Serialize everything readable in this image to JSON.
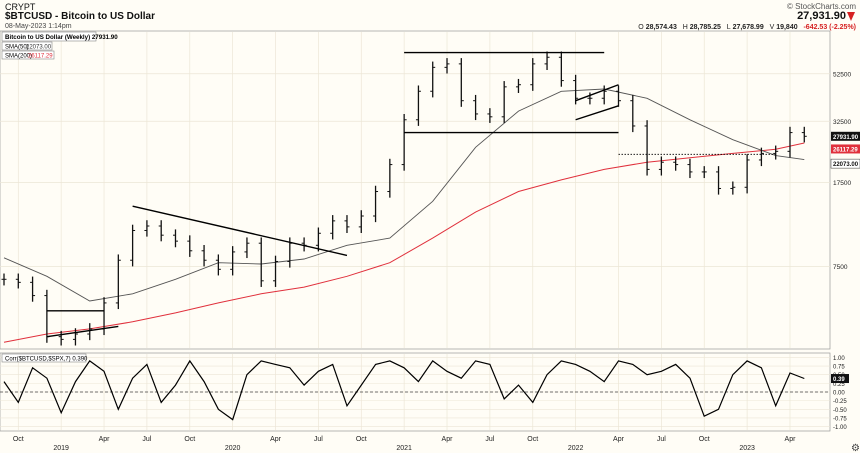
{
  "header": {
    "exchange": "CRYPT",
    "symbol_title": "$BTCUSD - Bitcoin to US Dollar",
    "date": "08-May-2023 1:14pm",
    "brand": "© StockCharts.com",
    "last_price": "27,931.90",
    "ohlc": {
      "open_label": "O",
      "open": "28,574.43",
      "high_label": "H",
      "high": "28,785.25",
      "low_label": "L",
      "low": "27,678.99",
      "volume_label": "V",
      "volume": "19,840",
      "change": "-642.53 (-2.25%)"
    }
  },
  "colors": {
    "background": "#fffdf6",
    "price_bars": "#111111",
    "sma50": "#555555",
    "sma200": "#e0303c",
    "trendline": "#000000",
    "last_price_tag": "#111111",
    "sma200_tag": "#e0303c",
    "sma50_tag": "#333333",
    "change_negative": "#d62020"
  },
  "chart_data": [
    {
      "type": "line",
      "title": "Bitcoin to US Dollar (Weekly) 27931.90",
      "scale": "log",
      "y_ticks": [
        52500,
        32500,
        17500,
        7500
      ],
      "ylim": [
        3300,
        80000
      ],
      "x_ticks": [
        "Oct",
        "2019",
        "Apr",
        "Jul",
        "Oct",
        "2020",
        "Apr",
        "Jul",
        "Oct",
        "2021",
        "Apr",
        "Jul",
        "Oct",
        "2022",
        "Apr",
        "Jul",
        "Oct",
        "2023",
        "Apr"
      ],
      "x_tick_dates": [
        "2018-10",
        "2019-01",
        "2019-04",
        "2019-07",
        "2019-10",
        "2020-01",
        "2020-04",
        "2020-07",
        "2020-10",
        "2021-01",
        "2021-04",
        "2021-07",
        "2021-10",
        "2022-01",
        "2022-04",
        "2022-07",
        "2022-10",
        "2023-01",
        "2023-04"
      ],
      "grid": true,
      "legend": "top-left",
      "legend_entries": [
        {
          "label": "SMA(50)",
          "value": "22073.00"
        },
        {
          "label": "SMA(200)",
          "value": "26117.29"
        }
      ],
      "axis_tags": [
        {
          "label": "27931.90",
          "value": 27931.9,
          "kind": "price"
        },
        {
          "label": "26117.29",
          "value": 26117.29,
          "kind": "sma200"
        },
        {
          "label": "22073.00",
          "value": 22073.0,
          "kind": "sma50"
        }
      ],
      "series": [
        {
          "name": "Bitcoin to US Dollar (Weekly)",
          "kind": "close",
          "x": [
            "2018-09",
            "2018-10",
            "2018-11",
            "2018-12",
            "2019-01",
            "2019-02",
            "2019-03",
            "2019-04",
            "2019-05",
            "2019-06",
            "2019-07",
            "2019-08",
            "2019-09",
            "2019-10",
            "2019-11",
            "2019-12",
            "2020-01",
            "2020-02",
            "2020-03",
            "2020-04",
            "2020-05",
            "2020-06",
            "2020-07",
            "2020-08",
            "2020-09",
            "2020-10",
            "2020-11",
            "2020-12",
            "2021-01",
            "2021-02",
            "2021-03",
            "2021-04",
            "2021-05",
            "2021-06",
            "2021-07",
            "2021-08",
            "2021-09",
            "2021-10",
            "2021-11",
            "2021-12",
            "2022-01",
            "2022-02",
            "2022-03",
            "2022-04",
            "2022-05",
            "2022-06",
            "2022-07",
            "2022-08",
            "2022-09",
            "2022-10",
            "2022-11",
            "2022-12",
            "2023-01",
            "2023-02",
            "2023-03",
            "2023-04",
            "2023-05"
          ],
          "values": [
            6600,
            6400,
            5600,
            3700,
            3600,
            3800,
            4000,
            5200,
            8000,
            10800,
            11300,
            10300,
            9700,
            8800,
            8000,
            7300,
            8700,
            9500,
            6500,
            7900,
            9500,
            9300,
            10500,
            11900,
            11200,
            12500,
            16000,
            21000,
            33000,
            44000,
            56000,
            58000,
            40000,
            35000,
            34000,
            46000,
            47000,
            58000,
            62000,
            49000,
            41000,
            41000,
            44000,
            40000,
            31000,
            20000,
            21500,
            21000,
            19500,
            19500,
            16500,
            16700,
            22000,
            23500,
            24000,
            29000,
            27931.9
          ]
        },
        {
          "name": "SMA(50)",
          "kind": "sma50",
          "x": [
            "2018-09",
            "2018-12",
            "2019-03",
            "2019-06",
            "2019-09",
            "2019-12",
            "2020-03",
            "2020-06",
            "2020-09",
            "2020-12",
            "2021-03",
            "2021-06",
            "2021-09",
            "2021-12",
            "2022-03",
            "2022-06",
            "2022-09",
            "2022-12",
            "2023-03",
            "2023-05"
          ],
          "values": [
            8200,
            6800,
            5300,
            5700,
            6600,
            7800,
            7700,
            8100,
            9300,
            10000,
            14500,
            25000,
            36000,
            44000,
            45000,
            41000,
            33000,
            27000,
            23000,
            22073
          ]
        },
        {
          "name": "SMA(200)",
          "kind": "sma200",
          "x": [
            "2018-09",
            "2018-12",
            "2019-03",
            "2019-06",
            "2019-09",
            "2019-12",
            "2020-03",
            "2020-06",
            "2020-09",
            "2020-12",
            "2021-03",
            "2021-06",
            "2021-09",
            "2021-12",
            "2022-03",
            "2022-06",
            "2022-09",
            "2022-12",
            "2023-03",
            "2023-05"
          ],
          "values": [
            3500,
            3800,
            4000,
            4300,
            4700,
            5200,
            5700,
            6100,
            6800,
            7800,
            10000,
            13000,
            16000,
            18000,
            20000,
            21500,
            22500,
            23500,
            24500,
            26117.29
          ]
        }
      ],
      "trendlines": [
        {
          "from": [
            "2018-12",
            3700
          ],
          "to": [
            "2019-05",
            4100
          ]
        },
        {
          "from": [
            "2018-12",
            4800
          ],
          "to": [
            "2019-04",
            4800
          ]
        },
        {
          "from": [
            "2019-06",
            13800
          ],
          "to": [
            "2020-09",
            8400
          ]
        },
        {
          "from": [
            "2021-01",
            65000
          ],
          "to": [
            "2022-03",
            65000
          ]
        },
        {
          "from": [
            "2021-01",
            29000
          ],
          "to": [
            "2022-04",
            29000
          ]
        },
        {
          "from": [
            "2022-01",
            40000
          ],
          "to": [
            "2022-04",
            47000
          ]
        },
        {
          "from": [
            "2022-01",
            33000
          ],
          "to": [
            "2022-04",
            38000
          ]
        },
        {
          "from": [
            "2022-04",
            23300
          ],
          "to": [
            "2023-03",
            23300
          ],
          "style": "dotted"
        }
      ]
    },
    {
      "type": "line",
      "title": "Corr($BTCUSD,$SPX,7) 0.390",
      "ylim": [
        -1.1,
        1.1
      ],
      "y_ticks": [
        1.0,
        0.75,
        0.5,
        0.25,
        0.0,
        -0.25,
        -0.5,
        -0.75,
        -1.0
      ],
      "y_tick_labels": [
        "1.00",
        "0.75",
        "0.50",
        "0.25",
        "0.00",
        "-0.25",
        "-0.50",
        "-0.75",
        "-1.00"
      ],
      "reference_line": {
        "value": 0.0,
        "style": "dashed"
      },
      "last_value_tag": {
        "label": "0.39",
        "value": 0.39
      },
      "series": [
        {
          "name": "Corr($BTCUSD,$SPX,7)",
          "x": [
            "2018-09",
            "2018-10",
            "2018-11",
            "2018-12",
            "2019-01",
            "2019-02",
            "2019-03",
            "2019-04",
            "2019-05",
            "2019-06",
            "2019-07",
            "2019-08",
            "2019-09",
            "2019-10",
            "2019-11",
            "2019-12",
            "2020-01",
            "2020-02",
            "2020-03",
            "2020-04",
            "2020-05",
            "2020-06",
            "2020-07",
            "2020-08",
            "2020-09",
            "2020-10",
            "2020-11",
            "2020-12",
            "2021-01",
            "2021-02",
            "2021-03",
            "2021-04",
            "2021-05",
            "2021-06",
            "2021-07",
            "2021-08",
            "2021-09",
            "2021-10",
            "2021-11",
            "2021-12",
            "2022-01",
            "2022-02",
            "2022-03",
            "2022-04",
            "2022-05",
            "2022-06",
            "2022-07",
            "2022-08",
            "2022-09",
            "2022-10",
            "2022-11",
            "2022-12",
            "2023-01",
            "2023-02",
            "2023-03",
            "2023-04",
            "2023-05"
          ],
          "values": [
            0.3,
            -0.3,
            0.7,
            0.4,
            -0.6,
            0.3,
            0.9,
            0.6,
            -0.5,
            0.4,
            0.8,
            -0.3,
            0.2,
            0.9,
            0.3,
            -0.5,
            -0.8,
            0.5,
            0.9,
            0.8,
            0.7,
            0.2,
            0.6,
            0.8,
            -0.4,
            0.2,
            0.8,
            0.9,
            0.7,
            0.3,
            0.9,
            0.6,
            0.4,
            0.9,
            0.8,
            -0.2,
            0.2,
            -0.3,
            0.5,
            0.9,
            0.8,
            0.6,
            0.3,
            0.9,
            0.8,
            0.5,
            0.6,
            0.8,
            0.4,
            -0.7,
            -0.5,
            0.5,
            0.9,
            0.7,
            -0.4,
            0.55,
            0.39
          ]
        }
      ]
    }
  ]
}
